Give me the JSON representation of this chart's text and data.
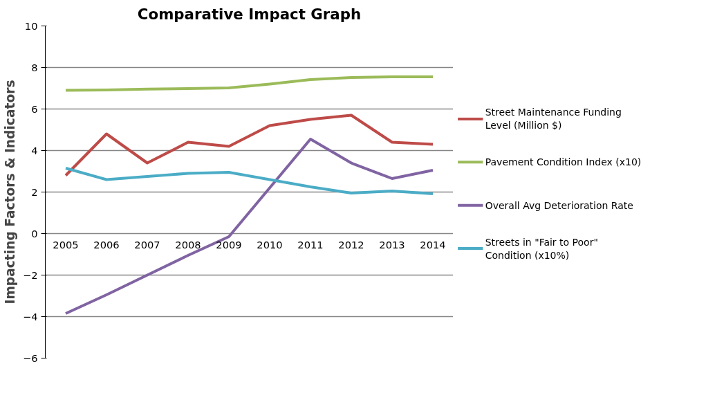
{
  "chart_data": {
    "type": "line",
    "title": "Comparative Impact Graph",
    "ylabel": "Impacting Factors & Indicators",
    "categories": [
      "2005",
      "2006",
      "2007",
      "2008",
      "2009",
      "2010",
      "2011",
      "2012",
      "2013",
      "2014"
    ],
    "ylim": [
      -6,
      10
    ],
    "yticks": [
      -6,
      -4,
      -2,
      0,
      2,
      4,
      6,
      8,
      10
    ],
    "grid": "y",
    "legend": "right",
    "marker": "none",
    "line_style": "solid",
    "series": [
      {
        "name": "Street Maintenance Funding Level (Million $)",
        "color": "#be4b48",
        "values": [
          2.8,
          4.8,
          3.4,
          4.4,
          4.2,
          5.2,
          5.5,
          5.7,
          4.4,
          4.3
        ]
      },
      {
        "name": "Pavement Condition Index (x10)",
        "color": "#9bbb59",
        "values": [
          6.9,
          6.92,
          6.96,
          6.98,
          7.02,
          7.2,
          7.42,
          7.52,
          7.55,
          7.55
        ]
      },
      {
        "name": "Overall Avg Deterioration Rate",
        "color": "#8064a2",
        "values": [
          -3.85,
          -2.95,
          -2.0,
          -1.05,
          -0.15,
          2.2,
          4.55,
          3.4,
          2.65,
          3.05
        ]
      },
      {
        "name": "Streets in \"Fair to Poor\" Condition  (x10%)",
        "color": "#4bacc6",
        "values": [
          3.15,
          2.6,
          2.75,
          2.9,
          2.95,
          2.6,
          2.25,
          1.95,
          2.05,
          1.92
        ]
      }
    ]
  }
}
